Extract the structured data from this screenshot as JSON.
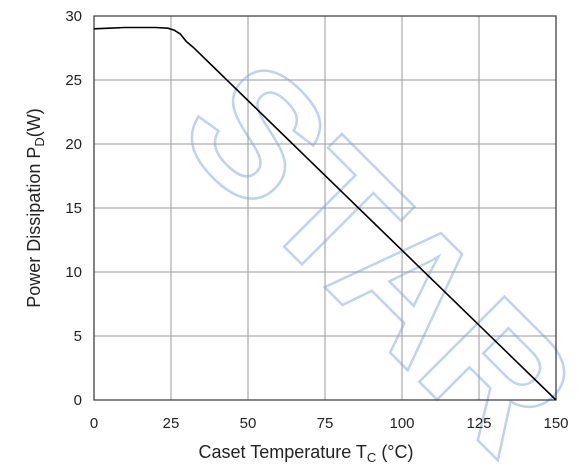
{
  "chart_data": {
    "type": "line",
    "title": "",
    "xlabel": "Caset Temperature T",
    "xlabel_sub": "C",
    "xlabel_unit": " (°C)",
    "ylabel": "Power Dissipation P",
    "ylabel_sub": "D",
    "ylabel_unit": "(W)",
    "xlim": [
      0,
      150
    ],
    "ylim": [
      0,
      30
    ],
    "x_ticks": [
      0,
      25,
      50,
      75,
      100,
      125,
      150
    ],
    "y_ticks": [
      0,
      5,
      10,
      15,
      20,
      25,
      30
    ],
    "grid": true,
    "legend": "none",
    "series": [
      {
        "x": [
          0,
          5,
          10,
          15,
          20,
          24,
          26,
          28,
          30,
          32,
          150
        ],
        "y": [
          29.0,
          29.05,
          29.1,
          29.1,
          29.1,
          29.05,
          28.9,
          28.6,
          28.0,
          27.6,
          0
        ],
        "color": "#000000"
      }
    ],
    "watermark": "STAR",
    "watermark_color": "#8ab0e6"
  }
}
